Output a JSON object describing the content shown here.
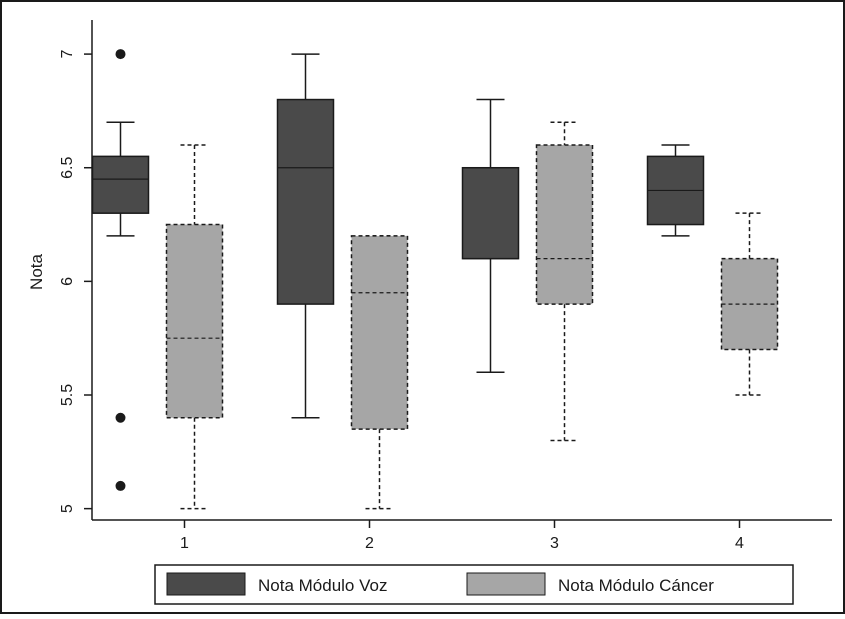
{
  "chart_data": {
    "type": "boxplot",
    "ylabel": "Nota",
    "xlabel": "",
    "ylim": [
      4.95,
      7.15
    ],
    "yticks": [
      "5",
      "5.5",
      "6",
      "6.5",
      "7"
    ],
    "categories": [
      "1",
      "2",
      "3",
      "4"
    ],
    "grid": false,
    "legend_position": "bottom",
    "series": [
      {
        "name": "Nota Módulo Voz",
        "color": "#4a4a4a",
        "boxes": [
          {
            "category": "1",
            "whisker_low": 6.2,
            "q1": 6.3,
            "median": 6.45,
            "q3": 6.55,
            "whisker_high": 6.7,
            "outliers": [
              7.0,
              5.4,
              5.1
            ]
          },
          {
            "category": "2",
            "whisker_low": 5.4,
            "q1": 5.9,
            "median": 6.5,
            "q3": 6.8,
            "whisker_high": 7.0,
            "outliers": []
          },
          {
            "category": "3",
            "whisker_low": 5.6,
            "q1": 6.1,
            "median": 6.1,
            "q3": 6.5,
            "whisker_high": 6.8,
            "outliers": []
          },
          {
            "category": "4",
            "whisker_low": 6.2,
            "q1": 6.25,
            "median": 6.4,
            "q3": 6.55,
            "whisker_high": 6.6,
            "outliers": []
          }
        ]
      },
      {
        "name": "Nota Módulo Cáncer",
        "color": "#a6a6a6",
        "boxes": [
          {
            "category": "1",
            "whisker_low": 5.0,
            "q1": 5.4,
            "median": 5.75,
            "q3": 6.25,
            "whisker_high": 6.6,
            "outliers": []
          },
          {
            "category": "2",
            "whisker_low": 5.0,
            "q1": 5.35,
            "median": 5.95,
            "q3": 6.2,
            "whisker_high": 6.2,
            "outliers": []
          },
          {
            "category": "3",
            "whisker_low": 5.3,
            "q1": 5.9,
            "median": 6.1,
            "q3": 6.6,
            "whisker_high": 6.7,
            "outliers": []
          },
          {
            "category": "4",
            "whisker_low": 5.5,
            "q1": 5.7,
            "median": 5.9,
            "q3": 6.1,
            "whisker_high": 6.3,
            "outliers": []
          }
        ]
      }
    ]
  }
}
